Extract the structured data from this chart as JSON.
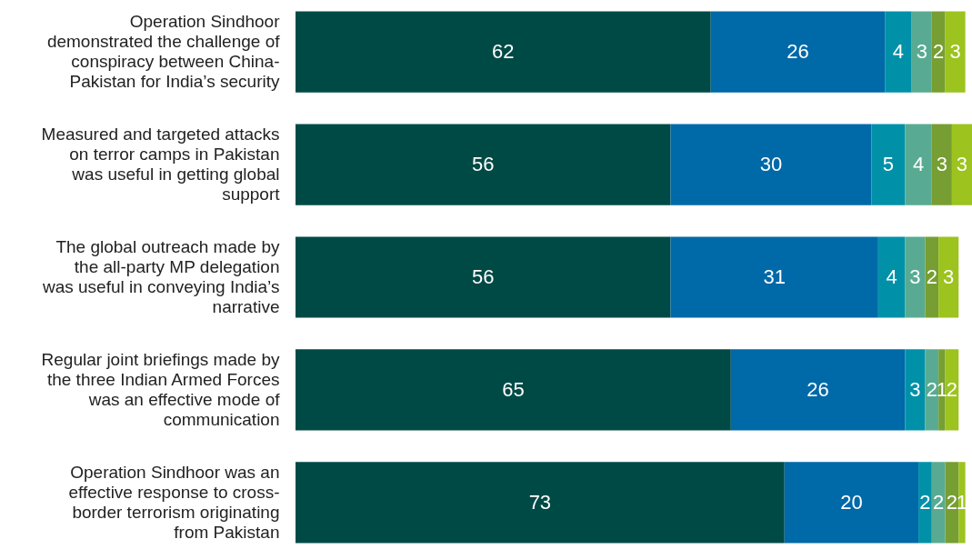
{
  "chart_data": {
    "type": "bar",
    "orientation": "horizontal",
    "stacked": true,
    "data_labels": true,
    "categories": [
      "Operation Sindhoor demonstrated the challenge of conspiracy between China-Pakistan for India’s security",
      "Measured and targeted attacks on terror camps in Pakistan was useful in getting global support",
      "The global outreach made by the all-party MP delegation was useful in conveying India’s narrative",
      "Regular joint briefings made by the three Indian Armed Forces was an effective mode of communication",
      "Operation Sindhoor was an effective response to cross-border terrorism originating from Pakistan"
    ],
    "series": [
      {
        "color": "#004a46",
        "values": [
          62,
          56,
          56,
          65,
          73
        ]
      },
      {
        "color": "#0069a8",
        "values": [
          26,
          30,
          31,
          26,
          20
        ]
      },
      {
        "color": "#0091a8",
        "values": [
          4,
          5,
          4,
          3,
          2
        ]
      },
      {
        "color": "#58ab92",
        "values": [
          3,
          4,
          3,
          2,
          2
        ]
      },
      {
        "color": "#779e32",
        "values": [
          2,
          3,
          2,
          1,
          2
        ]
      },
      {
        "color": "#9cc31e",
        "values": [
          3,
          3,
          3,
          2,
          1
        ]
      }
    ]
  }
}
